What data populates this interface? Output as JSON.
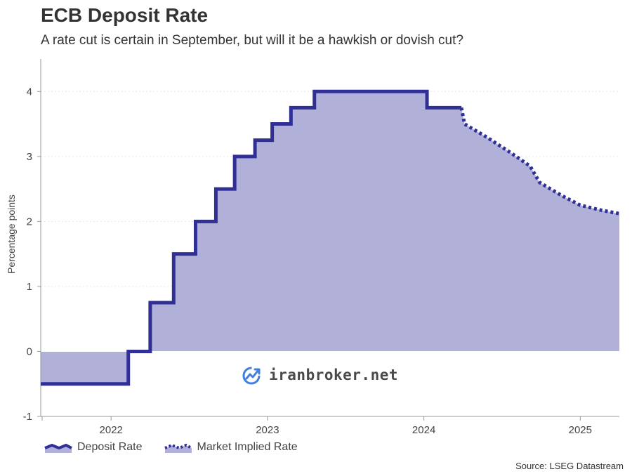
{
  "header": {
    "title": "ECB Deposit Rate",
    "subtitle": "A rate cut is certain in September, but will it be a hawkish or dovish cut?"
  },
  "watermark": {
    "text": "iranbroker.net",
    "icon": "growth-chart-icon"
  },
  "legend": {
    "deposit_label": "Deposit Rate",
    "implied_label": "Market Implied Rate"
  },
  "source": "Source: LSEG Datastream",
  "colors": {
    "line": "#2f2f96",
    "fill": "#b0b0d9",
    "axis": "#999999",
    "grid": "#e6e6e6"
  },
  "chart_data": {
    "type": "area",
    "ylabel": "Percentage points",
    "xlim": [
      2021.55,
      2025.25
    ],
    "ylim": [
      -1,
      4.5
    ],
    "y_ticks": [
      -1,
      0,
      1,
      2,
      3,
      4
    ],
    "x_tick_labels": [
      "2022",
      "2023",
      "2024",
      "2025"
    ],
    "grid": true,
    "legend_position": "bottom-left",
    "series": [
      {
        "name": "Deposit Rate",
        "style": "solid-step",
        "points": [
          {
            "x": 2021.55,
            "y": -0.5
          },
          {
            "x": 2022.11,
            "y": 0.0
          },
          {
            "x": 2022.25,
            "y": 0.75
          },
          {
            "x": 2022.4,
            "y": 1.5
          },
          {
            "x": 2022.54,
            "y": 2.0
          },
          {
            "x": 2022.67,
            "y": 2.5
          },
          {
            "x": 2022.79,
            "y": 3.0
          },
          {
            "x": 2022.92,
            "y": 3.25
          },
          {
            "x": 2023.03,
            "y": 3.5
          },
          {
            "x": 2023.15,
            "y": 3.75
          },
          {
            "x": 2023.3,
            "y": 4.0
          },
          {
            "x": 2024.02,
            "y": 3.75
          },
          {
            "x": 2024.24,
            "y": 3.75
          }
        ]
      },
      {
        "name": "Market Implied Rate",
        "style": "dotted",
        "points": [
          {
            "x": 2024.24,
            "y": 3.75
          },
          {
            "x": 2024.26,
            "y": 3.5
          },
          {
            "x": 2024.4,
            "y": 3.3
          },
          {
            "x": 2024.56,
            "y": 3.05
          },
          {
            "x": 2024.68,
            "y": 2.85
          },
          {
            "x": 2024.74,
            "y": 2.6
          },
          {
            "x": 2024.88,
            "y": 2.4
          },
          {
            "x": 2025.0,
            "y": 2.25
          },
          {
            "x": 2025.14,
            "y": 2.17
          },
          {
            "x": 2025.25,
            "y": 2.12
          }
        ]
      }
    ]
  }
}
